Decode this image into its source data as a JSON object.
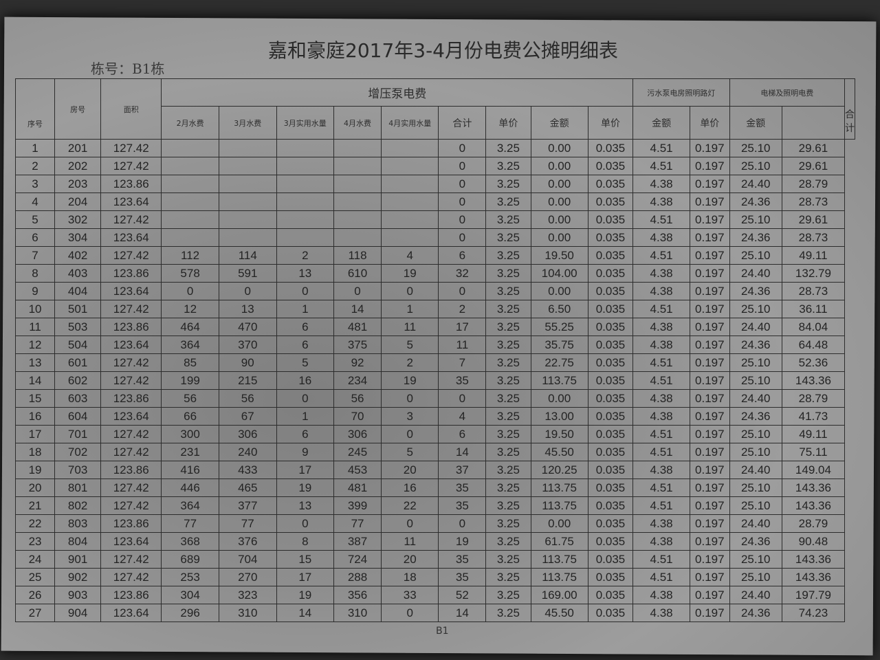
{
  "title": "嘉和豪庭2017年3-4月份电费公摊明细表",
  "building": "栋号：B1栋",
  "headers": {
    "seq": "序号",
    "room": "房号",
    "area": "面积",
    "pump_group": "增压泵电费",
    "feb_water": "2月水费",
    "mar_water": "3月水费",
    "mar_use": "3月实用水量",
    "apr_water": "4月水费",
    "apr_use": "4月实用水量",
    "total": "合计",
    "unit_price": "单价",
    "amount": "金额",
    "sewage_group": "污水泵电房照明路灯",
    "sewage_price": "单价",
    "sewage_amount": "金额",
    "elevator_group": "电梯及照明电费",
    "elevator_price": "单价",
    "elevator_amount": "金额",
    "grand_total": "合计"
  },
  "rows": [
    [
      "1",
      "201",
      "127.42",
      "",
      "",
      "",
      "",
      "",
      "0",
      "3.25",
      "0.00",
      "0.035",
      "4.51",
      "0.197",
      "25.10",
      "29.61"
    ],
    [
      "2",
      "202",
      "127.42",
      "",
      "",
      "",
      "",
      "",
      "0",
      "3.25",
      "0.00",
      "0.035",
      "4.51",
      "0.197",
      "25.10",
      "29.61"
    ],
    [
      "3",
      "203",
      "123.86",
      "",
      "",
      "",
      "",
      "",
      "0",
      "3.25",
      "0.00",
      "0.035",
      "4.38",
      "0.197",
      "24.40",
      "28.79"
    ],
    [
      "4",
      "204",
      "123.64",
      "",
      "",
      "",
      "",
      "",
      "0",
      "3.25",
      "0.00",
      "0.035",
      "4.38",
      "0.197",
      "24.36",
      "28.73"
    ],
    [
      "5",
      "302",
      "127.42",
      "",
      "",
      "",
      "",
      "",
      "0",
      "3.25",
      "0.00",
      "0.035",
      "4.51",
      "0.197",
      "25.10",
      "29.61"
    ],
    [
      "6",
      "304",
      "123.64",
      "",
      "",
      "",
      "",
      "",
      "0",
      "3.25",
      "0.00",
      "0.035",
      "4.38",
      "0.197",
      "24.36",
      "28.73"
    ],
    [
      "7",
      "402",
      "127.42",
      "112",
      "114",
      "2",
      "118",
      "4",
      "6",
      "3.25",
      "19.50",
      "0.035",
      "4.51",
      "0.197",
      "25.10",
      "49.11"
    ],
    [
      "8",
      "403",
      "123.86",
      "578",
      "591",
      "13",
      "610",
      "19",
      "32",
      "3.25",
      "104.00",
      "0.035",
      "4.38",
      "0.197",
      "24.40",
      "132.79"
    ],
    [
      "9",
      "404",
      "123.64",
      "0",
      "0",
      "0",
      "0",
      "0",
      "0",
      "3.25",
      "0.00",
      "0.035",
      "4.38",
      "0.197",
      "24.36",
      "28.73"
    ],
    [
      "10",
      "501",
      "127.42",
      "12",
      "13",
      "1",
      "14",
      "1",
      "2",
      "3.25",
      "6.50",
      "0.035",
      "4.51",
      "0.197",
      "25.10",
      "36.11"
    ],
    [
      "11",
      "503",
      "123.86",
      "464",
      "470",
      "6",
      "481",
      "11",
      "17",
      "3.25",
      "55.25",
      "0.035",
      "4.38",
      "0.197",
      "24.40",
      "84.04"
    ],
    [
      "12",
      "504",
      "123.64",
      "364",
      "370",
      "6",
      "375",
      "5",
      "11",
      "3.25",
      "35.75",
      "0.035",
      "4.38",
      "0.197",
      "24.36",
      "64.48"
    ],
    [
      "13",
      "601",
      "127.42",
      "85",
      "90",
      "5",
      "92",
      "2",
      "7",
      "3.25",
      "22.75",
      "0.035",
      "4.51",
      "0.197",
      "25.10",
      "52.36"
    ],
    [
      "14",
      "602",
      "127.42",
      "199",
      "215",
      "16",
      "234",
      "19",
      "35",
      "3.25",
      "113.75",
      "0.035",
      "4.51",
      "0.197",
      "25.10",
      "143.36"
    ],
    [
      "15",
      "603",
      "123.86",
      "56",
      "56",
      "0",
      "56",
      "0",
      "0",
      "3.25",
      "0.00",
      "0.035",
      "4.38",
      "0.197",
      "24.40",
      "28.79"
    ],
    [
      "16",
      "604",
      "123.64",
      "66",
      "67",
      "1",
      "70",
      "3",
      "4",
      "3.25",
      "13.00",
      "0.035",
      "4.38",
      "0.197",
      "24.36",
      "41.73"
    ],
    [
      "17",
      "701",
      "127.42",
      "300",
      "306",
      "6",
      "306",
      "0",
      "6",
      "3.25",
      "19.50",
      "0.035",
      "4.51",
      "0.197",
      "25.10",
      "49.11"
    ],
    [
      "18",
      "702",
      "127.42",
      "231",
      "240",
      "9",
      "245",
      "5",
      "14",
      "3.25",
      "45.50",
      "0.035",
      "4.51",
      "0.197",
      "25.10",
      "75.11"
    ],
    [
      "19",
      "703",
      "123.86",
      "416",
      "433",
      "17",
      "453",
      "20",
      "37",
      "3.25",
      "120.25",
      "0.035",
      "4.38",
      "0.197",
      "24.40",
      "149.04"
    ],
    [
      "20",
      "801",
      "127.42",
      "446",
      "465",
      "19",
      "481",
      "16",
      "35",
      "3.25",
      "113.75",
      "0.035",
      "4.51",
      "0.197",
      "25.10",
      "143.36"
    ],
    [
      "21",
      "802",
      "127.42",
      "364",
      "377",
      "13",
      "399",
      "22",
      "35",
      "3.25",
      "113.75",
      "0.035",
      "4.51",
      "0.197",
      "25.10",
      "143.36"
    ],
    [
      "22",
      "803",
      "123.86",
      "77",
      "77",
      "0",
      "77",
      "0",
      "0",
      "3.25",
      "0.00",
      "0.035",
      "4.38",
      "0.197",
      "24.40",
      "28.79"
    ],
    [
      "23",
      "804",
      "123.64",
      "368",
      "376",
      "8",
      "387",
      "11",
      "19",
      "3.25",
      "61.75",
      "0.035",
      "4.38",
      "0.197",
      "24.36",
      "90.48"
    ],
    [
      "24",
      "901",
      "127.42",
      "689",
      "704",
      "15",
      "724",
      "20",
      "35",
      "3.25",
      "113.75",
      "0.035",
      "4.51",
      "0.197",
      "25.10",
      "143.36"
    ],
    [
      "25",
      "902",
      "127.42",
      "253",
      "270",
      "17",
      "288",
      "18",
      "35",
      "3.25",
      "113.75",
      "0.035",
      "4.51",
      "0.197",
      "25.10",
      "143.36"
    ],
    [
      "26",
      "903",
      "123.86",
      "304",
      "323",
      "19",
      "356",
      "33",
      "52",
      "3.25",
      "169.00",
      "0.035",
      "4.38",
      "0.197",
      "24.40",
      "197.79"
    ],
    [
      "27",
      "904",
      "123.64",
      "296",
      "310",
      "14",
      "310",
      "0",
      "14",
      "3.25",
      "45.50",
      "0.035",
      "4.38",
      "0.197",
      "24.36",
      "74.23"
    ]
  ],
  "footer": "B1"
}
